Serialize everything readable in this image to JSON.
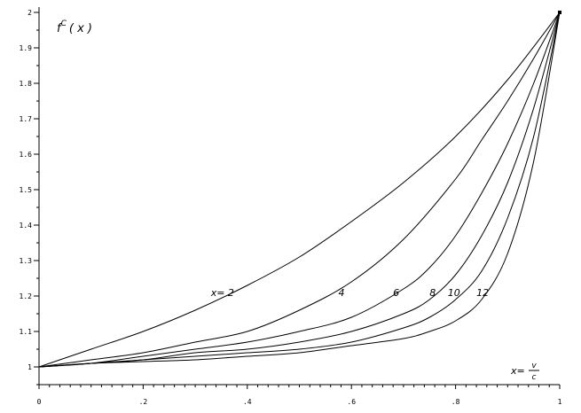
{
  "chart_data": {
    "type": "line",
    "title": "",
    "ylabel": {
      "base": "f",
      "superscript": "C",
      "arg": "( x )"
    },
    "xlabel": {
      "lhs": "x=",
      "numerator": "v",
      "denominator": "c"
    },
    "xlim": [
      0,
      1
    ],
    "ylim": [
      0.95,
      2.0
    ],
    "x_ticks": [
      {
        "value": 0,
        "label": "0"
      },
      {
        "value": 0.2,
        "label": ".2"
      },
      {
        "value": 0.4,
        "label": ".4"
      },
      {
        "value": 0.6,
        "label": ".6"
      },
      {
        "value": 0.8,
        "label": ".8"
      },
      {
        "value": 1,
        "label": "1"
      }
    ],
    "y_ticks": [
      {
        "value": 1,
        "label": "1"
      },
      {
        "value": 1.1,
        "label": "1.1"
      },
      {
        "value": 1.2,
        "label": "1.2"
      },
      {
        "value": 1.3,
        "label": "1.3"
      },
      {
        "value": 1.4,
        "label": "1.4"
      },
      {
        "value": 1.5,
        "label": "1.5"
      },
      {
        "value": 1.6,
        "label": "1.6"
      },
      {
        "value": 1.7,
        "label": "1.7"
      },
      {
        "value": 1.8,
        "label": "1.8"
      },
      {
        "value": 1.9,
        "label": "1.9"
      },
      {
        "value": 2,
        "label": "2"
      }
    ],
    "grid": false,
    "series": [
      {
        "label": "x= 2",
        "label_x": 0.33,
        "label_y": 1.21,
        "x": [
          0,
          0.1,
          0.2,
          0.3,
          0.4,
          0.5,
          0.6,
          0.7,
          0.8,
          0.9,
          1.0
        ],
        "y": [
          1.0,
          1.05,
          1.1,
          1.16,
          1.23,
          1.31,
          1.41,
          1.52,
          1.65,
          1.81,
          2.0
        ]
      },
      {
        "label": "4",
        "label_x": 0.575,
        "label_y": 1.21,
        "x": [
          0,
          0.1,
          0.2,
          0.3,
          0.4,
          0.5,
          0.6,
          0.7,
          0.8,
          0.85,
          0.9,
          0.95,
          1.0
        ],
        "y": [
          1.0,
          1.02,
          1.04,
          1.07,
          1.1,
          1.16,
          1.24,
          1.36,
          1.53,
          1.64,
          1.75,
          1.87,
          2.0
        ]
      },
      {
        "label": "6",
        "label_x": 0.68,
        "label_y": 1.21,
        "x": [
          0,
          0.1,
          0.2,
          0.3,
          0.4,
          0.5,
          0.6,
          0.7,
          0.75,
          0.8,
          0.85,
          0.9,
          0.95,
          1.0
        ],
        "y": [
          1.0,
          1.01,
          1.03,
          1.05,
          1.07,
          1.1,
          1.14,
          1.22,
          1.28,
          1.37,
          1.49,
          1.63,
          1.8,
          2.0
        ]
      },
      {
        "label": "8",
        "label_x": 0.75,
        "label_y": 1.21,
        "x": [
          0,
          0.1,
          0.2,
          0.3,
          0.4,
          0.5,
          0.6,
          0.7,
          0.75,
          0.8,
          0.85,
          0.9,
          0.95,
          1.0
        ],
        "y": [
          1.0,
          1.01,
          1.02,
          1.04,
          1.05,
          1.07,
          1.1,
          1.15,
          1.19,
          1.26,
          1.37,
          1.52,
          1.73,
          2.0
        ]
      },
      {
        "label": "10",
        "label_x": 0.785,
        "label_y": 1.21,
        "x": [
          0,
          0.1,
          0.2,
          0.3,
          0.4,
          0.5,
          0.6,
          0.7,
          0.75,
          0.8,
          0.85,
          0.9,
          0.95,
          1.0
        ],
        "y": [
          1.0,
          1.01,
          1.02,
          1.03,
          1.04,
          1.05,
          1.07,
          1.11,
          1.14,
          1.19,
          1.27,
          1.42,
          1.65,
          2.0
        ]
      },
      {
        "label": "12",
        "label_x": 0.84,
        "label_y": 1.21,
        "x": [
          0,
          0.1,
          0.2,
          0.3,
          0.4,
          0.5,
          0.6,
          0.7,
          0.75,
          0.8,
          0.85,
          0.9,
          0.95,
          1.0
        ],
        "y": [
          1.0,
          1.01,
          1.015,
          1.02,
          1.03,
          1.04,
          1.06,
          1.08,
          1.1,
          1.13,
          1.19,
          1.32,
          1.58,
          2.0
        ]
      }
    ]
  }
}
